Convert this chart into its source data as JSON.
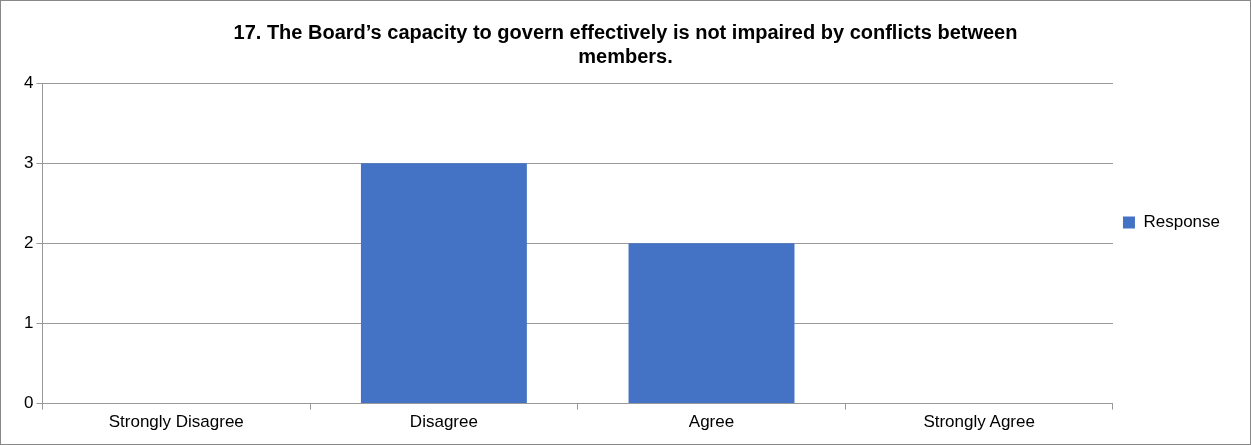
{
  "chart_data": {
    "type": "bar",
    "title": "17. The Board’s capacity to govern effectively is not impaired by conflicts between members.",
    "categories": [
      "Strongly Disagree",
      "Disagree",
      "Agree",
      "Strongly Agree"
    ],
    "series": [
      {
        "name": "Response",
        "color": "#4472c4",
        "values": [
          0,
          3,
          2,
          0
        ]
      }
    ],
    "ylim": [
      0,
      4
    ],
    "yticks": [
      0,
      1,
      2,
      3,
      4
    ],
    "grid": "y",
    "legend": "right"
  }
}
